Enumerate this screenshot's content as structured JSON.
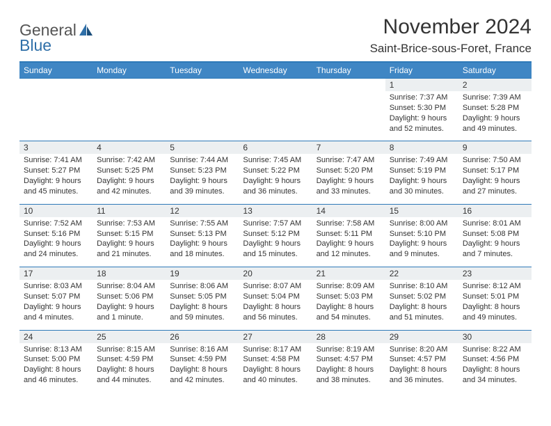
{
  "logo": {
    "general": "General",
    "blue": "Blue"
  },
  "title": "November 2024",
  "location": "Saint-Brice-sous-Foret, France",
  "weekdays": [
    "Sunday",
    "Monday",
    "Tuesday",
    "Wednesday",
    "Thursday",
    "Friday",
    "Saturday"
  ],
  "colors": {
    "header_bg": "#3f86c4",
    "border": "#2d79b8",
    "daynum_bg": "#eceff1",
    "logo_blue": "#2f6fa8"
  },
  "weeks": [
    {
      "nums": [
        "",
        "",
        "",
        "",
        "",
        "1",
        "2"
      ],
      "cells": [
        null,
        null,
        null,
        null,
        null,
        {
          "sunrise": "Sunrise: 7:37 AM",
          "sunset": "Sunset: 5:30 PM",
          "daylight": "Daylight: 9 hours and 52 minutes."
        },
        {
          "sunrise": "Sunrise: 7:39 AM",
          "sunset": "Sunset: 5:28 PM",
          "daylight": "Daylight: 9 hours and 49 minutes."
        }
      ]
    },
    {
      "nums": [
        "3",
        "4",
        "5",
        "6",
        "7",
        "8",
        "9"
      ],
      "cells": [
        {
          "sunrise": "Sunrise: 7:41 AM",
          "sunset": "Sunset: 5:27 PM",
          "daylight": "Daylight: 9 hours and 45 minutes."
        },
        {
          "sunrise": "Sunrise: 7:42 AM",
          "sunset": "Sunset: 5:25 PM",
          "daylight": "Daylight: 9 hours and 42 minutes."
        },
        {
          "sunrise": "Sunrise: 7:44 AM",
          "sunset": "Sunset: 5:23 PM",
          "daylight": "Daylight: 9 hours and 39 minutes."
        },
        {
          "sunrise": "Sunrise: 7:45 AM",
          "sunset": "Sunset: 5:22 PM",
          "daylight": "Daylight: 9 hours and 36 minutes."
        },
        {
          "sunrise": "Sunrise: 7:47 AM",
          "sunset": "Sunset: 5:20 PM",
          "daylight": "Daylight: 9 hours and 33 minutes."
        },
        {
          "sunrise": "Sunrise: 7:49 AM",
          "sunset": "Sunset: 5:19 PM",
          "daylight": "Daylight: 9 hours and 30 minutes."
        },
        {
          "sunrise": "Sunrise: 7:50 AM",
          "sunset": "Sunset: 5:17 PM",
          "daylight": "Daylight: 9 hours and 27 minutes."
        }
      ]
    },
    {
      "nums": [
        "10",
        "11",
        "12",
        "13",
        "14",
        "15",
        "16"
      ],
      "cells": [
        {
          "sunrise": "Sunrise: 7:52 AM",
          "sunset": "Sunset: 5:16 PM",
          "daylight": "Daylight: 9 hours and 24 minutes."
        },
        {
          "sunrise": "Sunrise: 7:53 AM",
          "sunset": "Sunset: 5:15 PM",
          "daylight": "Daylight: 9 hours and 21 minutes."
        },
        {
          "sunrise": "Sunrise: 7:55 AM",
          "sunset": "Sunset: 5:13 PM",
          "daylight": "Daylight: 9 hours and 18 minutes."
        },
        {
          "sunrise": "Sunrise: 7:57 AM",
          "sunset": "Sunset: 5:12 PM",
          "daylight": "Daylight: 9 hours and 15 minutes."
        },
        {
          "sunrise": "Sunrise: 7:58 AM",
          "sunset": "Sunset: 5:11 PM",
          "daylight": "Daylight: 9 hours and 12 minutes."
        },
        {
          "sunrise": "Sunrise: 8:00 AM",
          "sunset": "Sunset: 5:10 PM",
          "daylight": "Daylight: 9 hours and 9 minutes."
        },
        {
          "sunrise": "Sunrise: 8:01 AM",
          "sunset": "Sunset: 5:08 PM",
          "daylight": "Daylight: 9 hours and 7 minutes."
        }
      ]
    },
    {
      "nums": [
        "17",
        "18",
        "19",
        "20",
        "21",
        "22",
        "23"
      ],
      "cells": [
        {
          "sunrise": "Sunrise: 8:03 AM",
          "sunset": "Sunset: 5:07 PM",
          "daylight": "Daylight: 9 hours and 4 minutes."
        },
        {
          "sunrise": "Sunrise: 8:04 AM",
          "sunset": "Sunset: 5:06 PM",
          "daylight": "Daylight: 9 hours and 1 minute."
        },
        {
          "sunrise": "Sunrise: 8:06 AM",
          "sunset": "Sunset: 5:05 PM",
          "daylight": "Daylight: 8 hours and 59 minutes."
        },
        {
          "sunrise": "Sunrise: 8:07 AM",
          "sunset": "Sunset: 5:04 PM",
          "daylight": "Daylight: 8 hours and 56 minutes."
        },
        {
          "sunrise": "Sunrise: 8:09 AM",
          "sunset": "Sunset: 5:03 PM",
          "daylight": "Daylight: 8 hours and 54 minutes."
        },
        {
          "sunrise": "Sunrise: 8:10 AM",
          "sunset": "Sunset: 5:02 PM",
          "daylight": "Daylight: 8 hours and 51 minutes."
        },
        {
          "sunrise": "Sunrise: 8:12 AM",
          "sunset": "Sunset: 5:01 PM",
          "daylight": "Daylight: 8 hours and 49 minutes."
        }
      ]
    },
    {
      "nums": [
        "24",
        "25",
        "26",
        "27",
        "28",
        "29",
        "30"
      ],
      "cells": [
        {
          "sunrise": "Sunrise: 8:13 AM",
          "sunset": "Sunset: 5:00 PM",
          "daylight": "Daylight: 8 hours and 46 minutes."
        },
        {
          "sunrise": "Sunrise: 8:15 AM",
          "sunset": "Sunset: 4:59 PM",
          "daylight": "Daylight: 8 hours and 44 minutes."
        },
        {
          "sunrise": "Sunrise: 8:16 AM",
          "sunset": "Sunset: 4:59 PM",
          "daylight": "Daylight: 8 hours and 42 minutes."
        },
        {
          "sunrise": "Sunrise: 8:17 AM",
          "sunset": "Sunset: 4:58 PM",
          "daylight": "Daylight: 8 hours and 40 minutes."
        },
        {
          "sunrise": "Sunrise: 8:19 AM",
          "sunset": "Sunset: 4:57 PM",
          "daylight": "Daylight: 8 hours and 38 minutes."
        },
        {
          "sunrise": "Sunrise: 8:20 AM",
          "sunset": "Sunset: 4:57 PM",
          "daylight": "Daylight: 8 hours and 36 minutes."
        },
        {
          "sunrise": "Sunrise: 8:22 AM",
          "sunset": "Sunset: 4:56 PM",
          "daylight": "Daylight: 8 hours and 34 minutes."
        }
      ]
    }
  ]
}
